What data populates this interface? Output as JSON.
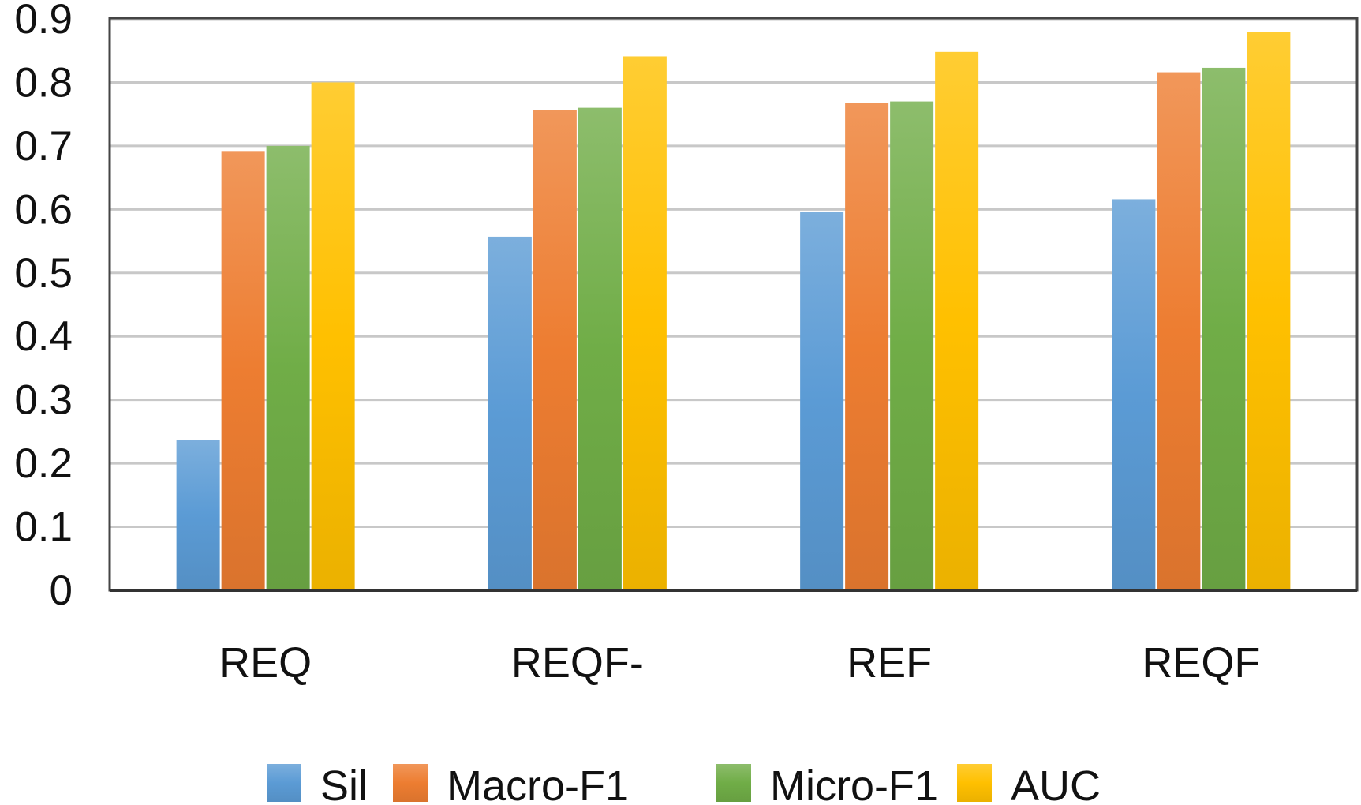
{
  "chart_data": {
    "type": "bar",
    "title": "",
    "xlabel": "",
    "ylabel": "",
    "categories": [
      "REQ",
      "REQF-",
      "REF",
      "REQF"
    ],
    "series": [
      {
        "name": "Sil",
        "values": [
          0.237,
          0.557,
          0.596,
          0.616
        ],
        "color": "#5b9bd5"
      },
      {
        "name": "Macro-F1",
        "values": [
          0.692,
          0.756,
          0.767,
          0.816
        ],
        "color": "#ed7d31"
      },
      {
        "name": "Micro-F1",
        "values": [
          0.7,
          0.76,
          0.77,
          0.823
        ],
        "color": "#70ad47"
      },
      {
        "name": "AUC",
        "values": [
          0.8,
          0.841,
          0.848,
          0.879
        ],
        "color": "#ffc000"
      }
    ],
    "ylim": [
      0,
      0.9
    ],
    "yticks": [
      "0",
      "0.1",
      "0.2",
      "0.3",
      "0.4",
      "0.5",
      "0.6",
      "0.7",
      "0.8",
      "0.9"
    ],
    "grid": true,
    "legend": "bottom"
  }
}
